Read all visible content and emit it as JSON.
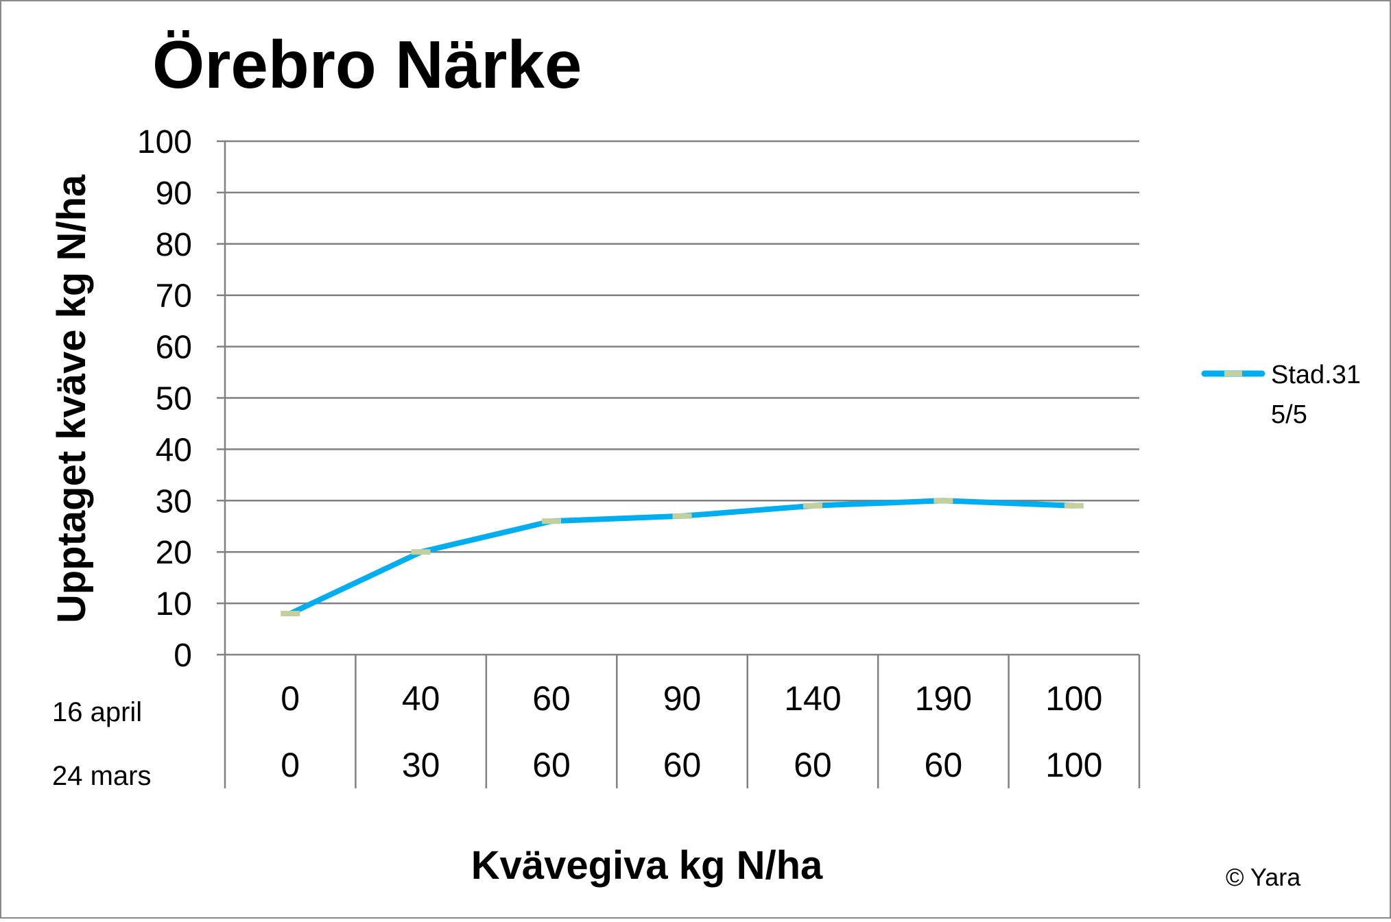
{
  "chart_data": {
    "type": "line",
    "title": "Örebro Närke",
    "ylabel": "Upptaget kväve kg N/ha",
    "xlabel": "Kvävegiva kg N/ha",
    "ylim": [
      0,
      100
    ],
    "yticks": [
      "0",
      "10",
      "20",
      "30",
      "40",
      "50",
      "60",
      "70",
      "80",
      "90",
      "100"
    ],
    "category_rows": [
      {
        "label": "16 april",
        "values": [
          "0",
          "40",
          "60",
          "90",
          "140",
          "190",
          "100"
        ]
      },
      {
        "label": "24 mars",
        "values": [
          "0",
          "30",
          "60",
          "60",
          "60",
          "60",
          "100"
        ]
      }
    ],
    "series": [
      {
        "name": "Stad.31\n5/5",
        "name_lines": [
          "Stad.31",
          "5/5"
        ],
        "values": [
          8,
          20,
          26,
          27,
          29,
          30,
          29
        ]
      }
    ],
    "grid": true,
    "legend": "right",
    "colors": {
      "line": "#00AEEF",
      "marker": "#C3CF9D",
      "grid": "#808080",
      "border": "#898989"
    },
    "copyright": "© Yara"
  }
}
